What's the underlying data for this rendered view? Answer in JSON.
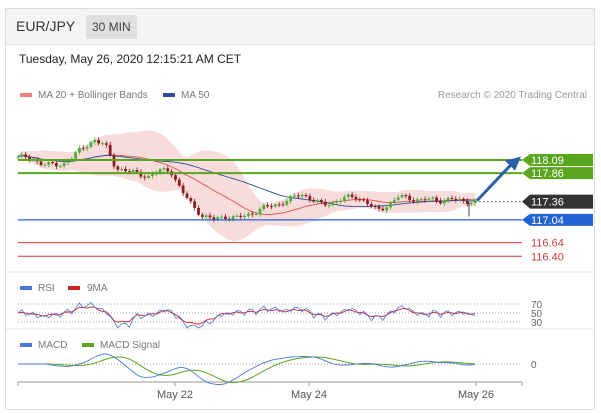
{
  "header": {
    "pair": "EUR/JPY",
    "timeframe": "30 MIN"
  },
  "datetime": "Tuesday, May 26, 2020 12:15:21 AM CET",
  "legend": {
    "ma_bollinger": "MA 20 + Bollinger Bands",
    "ma50": "MA 50",
    "source": "Research © 2020 Trading Central",
    "rsi": "RSI",
    "rsi_ma": "9MA",
    "macd": "MACD",
    "macd_signal": "MACD Signal"
  },
  "colors": {
    "up": "#4caf3a",
    "down": "#8a1c1c",
    "bollinger": "#f3c0c0",
    "ma20": "#e05050",
    "ma50": "#2a4f9a",
    "resistance": "#5aa61e",
    "support": "#2463d6",
    "lower_target": "#d43a3a",
    "current": "#333333",
    "rsi": "#4a78d8",
    "macd": "#4a78d8",
    "macd_signal": "#5aa61e"
  },
  "chart_data": {
    "type": "candlestick",
    "price": {
      "ylim": [
        116.3,
        118.6
      ],
      "current": "117.36",
      "levels": [
        {
          "label": "118.09",
          "value": 118.09,
          "kind": "resistance"
        },
        {
          "label": "117.86",
          "value": 117.86,
          "kind": "resistance"
        },
        {
          "label": "117.04",
          "value": 117.04,
          "kind": "support"
        },
        {
          "label": "116.64",
          "value": 116.64,
          "kind": "lower_target"
        },
        {
          "label": "116.40",
          "value": 116.4,
          "kind": "lower_target"
        }
      ],
      "close_path": [
        118.15,
        118.12,
        118.05,
        118.0,
        118.0,
        118.15,
        118.3,
        118.45,
        118.35,
        117.95,
        117.9,
        117.85,
        117.8,
        117.9,
        117.92,
        117.55,
        117.3,
        117.1,
        117.05,
        117.1,
        117.07,
        117.12,
        117.2,
        117.28,
        117.32,
        117.4,
        117.5,
        117.4,
        117.3,
        117.35,
        117.42,
        117.45,
        117.35,
        117.2,
        117.3,
        117.45,
        117.42,
        117.38,
        117.4,
        117.38,
        117.4,
        117.37,
        117.36
      ],
      "projection": [
        117.36,
        118.15
      ]
    },
    "x_ticks": [
      "May 22",
      "May 24",
      "May 26"
    ],
    "rsi": {
      "levels": [
        "70",
        "50",
        "30"
      ]
    },
    "macd": {
      "levels": [
        "0"
      ]
    }
  }
}
